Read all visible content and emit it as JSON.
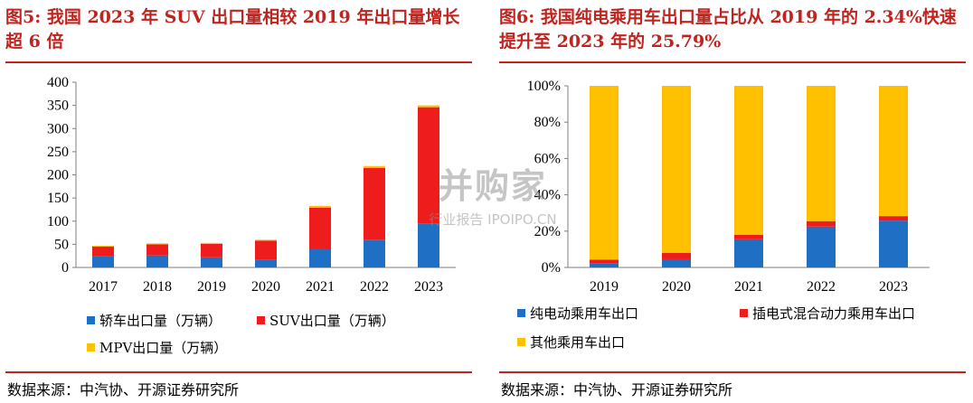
{
  "left": {
    "title": "图5: 我国 2023 年 SUV 出口量相较 2019 年出口量增长超 6 倍",
    "source": "数据来源：中汽协、开源证券研究所"
  },
  "right": {
    "title": "图6: 我国纯电乘用车出口量占比从 2019 年的 2.34%快速提升至 2023 年的 25.79%",
    "source": "数据来源：中汽协、开源证券研究所"
  },
  "watermark": {
    "main": "并购家",
    "sub": "行业报告 IPOIPO.CN"
  },
  "chart_data": [
    {
      "type": "bar",
      "stacked": true,
      "categories": [
        "2017",
        "2018",
        "2019",
        "2020",
        "2021",
        "2022",
        "2023"
      ],
      "ylim": [
        0,
        400
      ],
      "yticks": [
        0,
        50,
        100,
        150,
        200,
        250,
        300,
        350,
        400
      ],
      "legend_position": "bottom",
      "grid": false,
      "series": [
        {
          "name": "轿车出口量（万辆）",
          "color": "#1f6fc5",
          "values": [
            24,
            26,
            22,
            16,
            40,
            60,
            95
          ]
        },
        {
          "name": "SUV出口量（万辆）",
          "color": "#ee1c1c",
          "values": [
            21,
            24,
            29,
            42,
            89,
            155,
            251
          ]
        },
        {
          "name": "MPV出口量（万辆）",
          "color": "#ffc000",
          "values": [
            2,
            2,
            2,
            2,
            4,
            4,
            4
          ]
        }
      ]
    },
    {
      "type": "bar",
      "stacked": true,
      "percent": true,
      "categories": [
        "2019",
        "2020",
        "2021",
        "2022",
        "2023"
      ],
      "ylim": [
        0,
        100
      ],
      "yticks": [
        "0%",
        "20%",
        "40%",
        "60%",
        "80%",
        "100%"
      ],
      "legend_position": "bottom",
      "grid": false,
      "series": [
        {
          "name": "纯电动乘用车出口",
          "color": "#1f6fc5",
          "values": [
            2.34,
            4.5,
            15.5,
            22.5,
            25.79
          ]
        },
        {
          "name": "插电式混合动力乘用车出口",
          "color": "#ee1c1c",
          "values": [
            2.0,
            3.5,
            2.5,
            3.0,
            2.5
          ]
        },
        {
          "name": "其他乘用车出口",
          "color": "#ffc000",
          "values": [
            95.66,
            92.0,
            82.0,
            74.5,
            71.71
          ]
        }
      ]
    }
  ]
}
